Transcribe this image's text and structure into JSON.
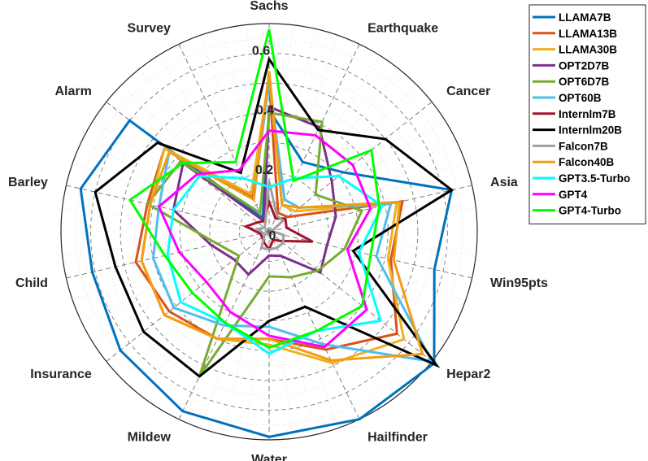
{
  "chart_data": {
    "type": "radar",
    "title": "",
    "axes": [
      "Sachs",
      "Earthquake",
      "Cancer",
      "Asia",
      "Win95pts",
      "Hepar2",
      "Hailfinder",
      "Water",
      "Mildew",
      "Insurance",
      "Child",
      "Barley",
      "Alarm",
      "Survey"
    ],
    "rlim": [
      0,
      0.7
    ],
    "rticks": [
      {
        "value": 0,
        "label": "0"
      },
      {
        "value": 0.2,
        "label": "0.2"
      },
      {
        "value": 0.4,
        "label": "0.4"
      },
      {
        "value": 0.6,
        "label": "0.6"
      }
    ],
    "grid": true,
    "legend_position": "top-right",
    "series": [
      {
        "name": "LLAMA7B",
        "color": "#0072BD",
        "values": [
          0.41,
          0.26,
          0.32,
          0.63,
          0.57,
          0.71,
          0.7,
          0.69,
          0.67,
          0.64,
          0.61,
          0.65,
          0.6,
          0.05
        ]
      },
      {
        "name": "LLAMA13B",
        "color": "#D95319",
        "values": [
          0.51,
          0.07,
          0.08,
          0.46,
          0.42,
          0.55,
          0.44,
          0.36,
          0.4,
          0.43,
          0.46,
          0.42,
          0.45,
          0.13
        ]
      },
      {
        "name": "LLAMA30B",
        "color": "#EDB120",
        "values": [
          0.52,
          0.1,
          0.11,
          0.44,
          0.41,
          0.58,
          0.49,
          0.38,
          0.4,
          0.45,
          0.44,
          0.41,
          0.45,
          0.14
        ]
      },
      {
        "name": "OPT2D7B",
        "color": "#7E2F8E",
        "values": [
          0.42,
          0.39,
          0.27,
          0.23,
          0.2,
          0.22,
          0.09,
          0.08,
          0.16,
          0.15,
          0.2,
          0.33,
          0.37,
          0.04
        ]
      },
      {
        "name": "OPT6D7B",
        "color": "#77AC30",
        "values": [
          0.4,
          0.41,
          0.2,
          0.32,
          0.26,
          0.21,
          0.17,
          0.15,
          0.54,
          0.13,
          0.18,
          0.42,
          0.38,
          0.07
        ]
      },
      {
        "name": "OPT60B",
        "color": "#4DBEEE",
        "values": [
          0.51,
          0.12,
          0.13,
          0.42,
          0.37,
          0.7,
          0.42,
          0.32,
          0.35,
          0.41,
          0.4,
          0.38,
          0.43,
          0.12
        ]
      },
      {
        "name": "Internlm7B",
        "color": "#A2142F",
        "values": [
          0.1,
          0.05,
          0.07,
          0.06,
          0.15,
          0.05,
          0.03,
          0.06,
          0.04,
          0.03,
          0.03,
          0.08,
          0.05,
          0.04
        ]
      },
      {
        "name": "Internlm20B",
        "color": "#000000",
        "values": [
          0.58,
          0.38,
          0.5,
          0.63,
          0.29,
          0.72,
          0.28,
          0.3,
          0.54,
          0.54,
          0.53,
          0.6,
          0.48,
          0.22
        ]
      },
      {
        "name": "Falcon7B",
        "color": "#A0A0A0",
        "values": [
          0.17,
          0.06,
          0.06,
          0.01,
          0.05,
          0.06,
          0.06,
          0.06,
          0.06,
          0.02,
          0.02,
          0.04,
          0.02,
          0.03
        ]
      },
      {
        "name": "Falcon40B",
        "color": "#F39C12",
        "values": [
          0.54,
          0.1,
          0.13,
          0.45,
          0.43,
          0.66,
          0.48,
          0.36,
          0.4,
          0.45,
          0.44,
          0.41,
          0.43,
          0.12
        ]
      },
      {
        "name": "GPT3.5-Turbo",
        "color": "#00FFFF",
        "values": [
          0.15,
          0.2,
          0.3,
          0.39,
          0.31,
          0.48,
          0.37,
          0.41,
          0.34,
          0.38,
          0.35,
          0.33,
          0.3,
          0.2
        ]
      },
      {
        "name": "GPT4",
        "color": "#FF00FF",
        "values": [
          0.34,
          0.36,
          0.36,
          0.35,
          0.27,
          0.42,
          0.43,
          0.35,
          0.3,
          0.27,
          0.31,
          0.38,
          0.31,
          0.23
        ]
      },
      {
        "name": "GPT4-Turbo",
        "color": "#00FF00",
        "values": [
          0.68,
          0.19,
          0.44,
          0.38,
          0.35,
          0.4,
          0.37,
          0.39,
          0.34,
          0.33,
          0.36,
          0.48,
          0.37,
          0.26
        ]
      }
    ]
  }
}
